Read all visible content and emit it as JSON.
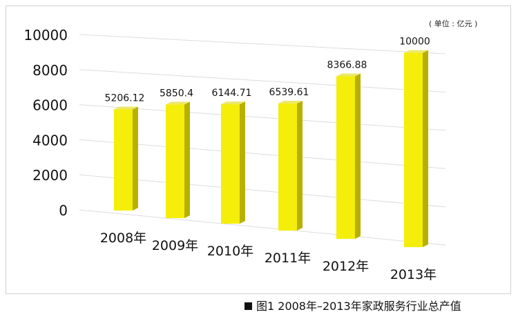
{
  "unit_label": "( 单位 : 亿元 )",
  "caption": "图1  2008年–2013年家政服务行业总产值",
  "colors": {
    "bar_front": "#f4ee0a",
    "bar_side": "#b7b000",
    "bar_top": "#ede86a",
    "grid": "#dcdcdc",
    "text": "#111111"
  },
  "chart_data": {
    "type": "bar",
    "title": "",
    "categories": [
      "2008年",
      "2009年",
      "2010年",
      "2011年",
      "2012年",
      "2013年"
    ],
    "values": [
      5206.12,
      5850.4,
      6144.71,
      6539.61,
      8366.88,
      10000
    ],
    "data_labels": [
      "5206.12",
      "5850.4",
      "6144.71",
      "6539.61",
      "8366.88",
      "10000"
    ],
    "y_ticks": [
      "0",
      "2000",
      "4000",
      "6000",
      "8000",
      "10000"
    ],
    "ylim": [
      0,
      10000
    ],
    "grid": true,
    "style": "3d-perspective"
  }
}
